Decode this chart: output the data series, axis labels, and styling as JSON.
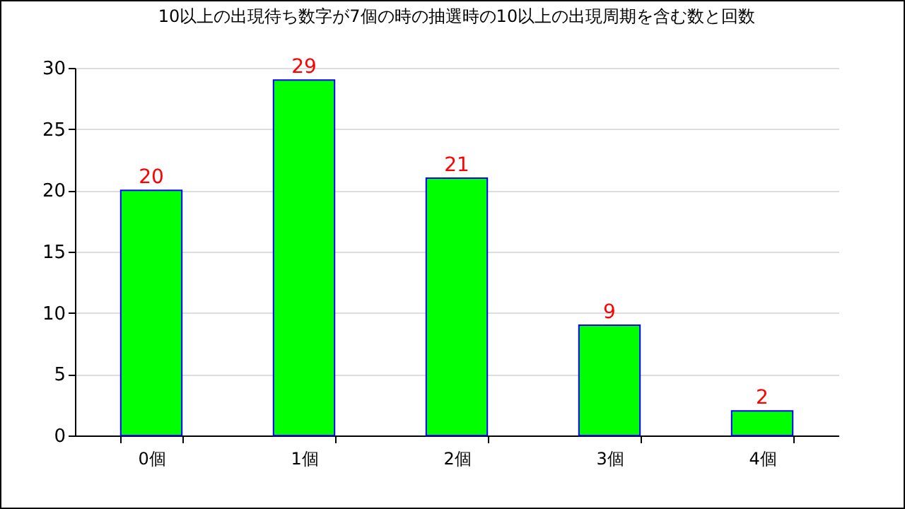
{
  "chart_data": {
    "type": "bar",
    "title": "10以上の出現待ち数字が7個の時の抽選時の10以上の出現周期を含む数と回数",
    "categories": [
      "0個",
      "1個",
      "2個",
      "3個",
      "4個"
    ],
    "values": [
      20,
      29,
      21,
      9,
      2
    ],
    "color": "#00ff00",
    "ylim": [
      0,
      30
    ],
    "yticks": [
      0,
      5,
      10,
      15,
      20,
      25,
      30
    ],
    "grid": "y",
    "data_labels": true
  }
}
